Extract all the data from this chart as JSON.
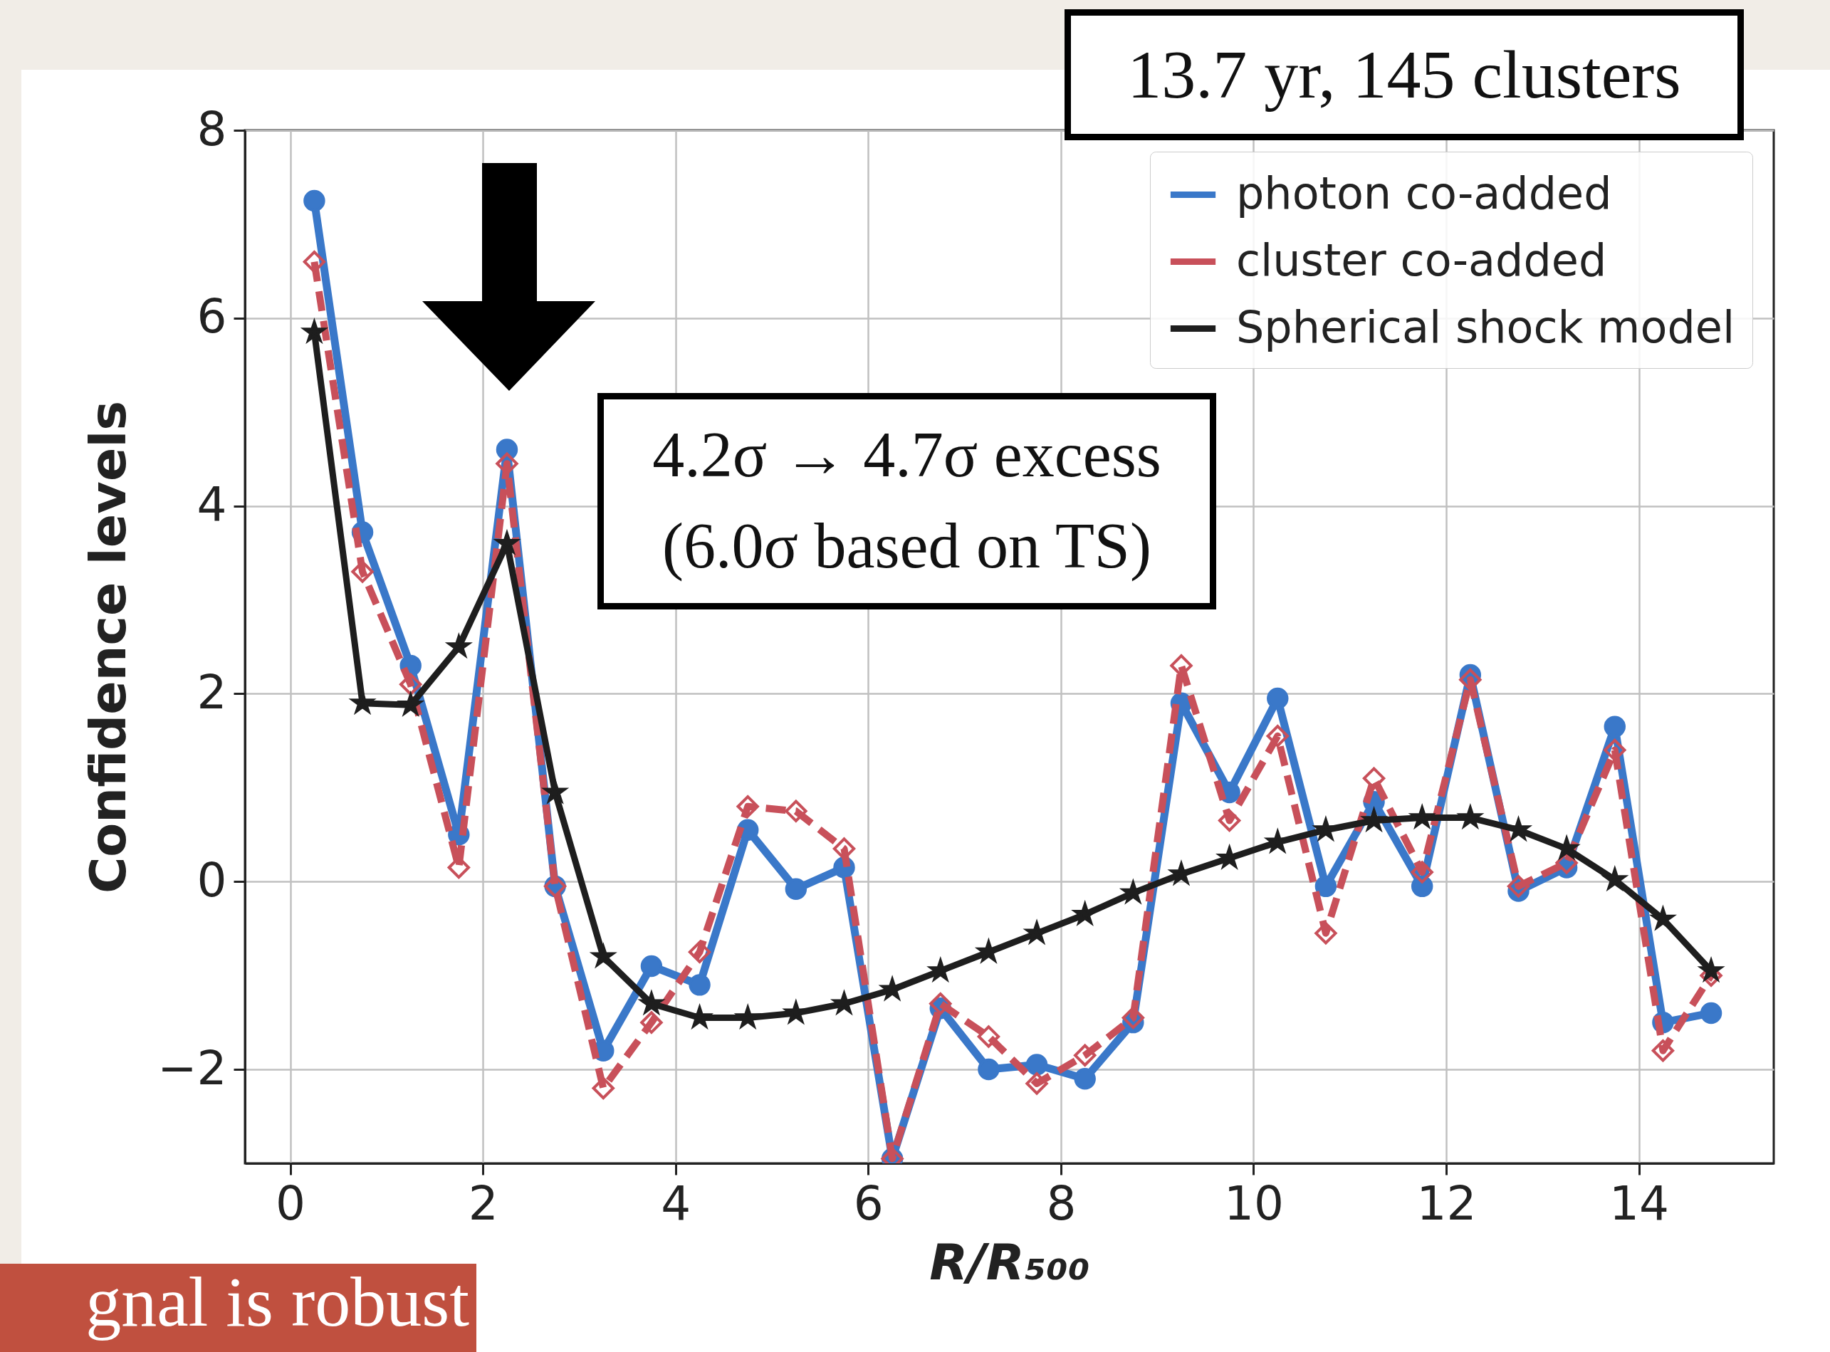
{
  "chart_data": {
    "type": "line",
    "xlabel": "R/R₅₀₀",
    "ylabel": "Confidence levels",
    "x": [
      0.25,
      0.75,
      1.25,
      1.75,
      2.25,
      2.75,
      3.25,
      3.75,
      4.25,
      4.75,
      5.25,
      5.75,
      6.25,
      6.75,
      7.25,
      7.75,
      8.25,
      8.75,
      9.25,
      9.75,
      10.25,
      10.75,
      11.25,
      11.75,
      12.25,
      12.75,
      13.25,
      13.75,
      14.25,
      14.75
    ],
    "series": [
      {
        "name": "photon co-added",
        "color": "#3a78c9",
        "marker": "circle",
        "line_style": "solid",
        "values": [
          7.25,
          3.72,
          2.3,
          0.5,
          4.6,
          -0.05,
          -1.8,
          -0.9,
          -1.1,
          0.55,
          -0.08,
          0.15,
          -2.95,
          -1.35,
          -2.0,
          -1.95,
          -2.1,
          -1.5,
          1.9,
          0.95,
          1.95,
          -0.05,
          0.85,
          -0.05,
          2.2,
          -0.1,
          0.15,
          1.65,
          -1.5,
          -1.4
        ]
      },
      {
        "name": "cluster co-added",
        "color": "#c8505a",
        "marker": "diamond",
        "line_style": "dashed",
        "values": [
          6.6,
          3.3,
          2.1,
          0.15,
          4.45,
          -0.05,
          -2.2,
          -1.5,
          -0.75,
          0.8,
          0.75,
          0.35,
          -2.95,
          -1.3,
          -1.65,
          -2.15,
          -1.85,
          -1.45,
          2.3,
          0.65,
          1.55,
          -0.55,
          1.1,
          0.1,
          2.15,
          -0.05,
          0.2,
          1.4,
          -1.8,
          -1.0
        ]
      },
      {
        "name": "Spherical shock model",
        "color": "#1e1e1e",
        "marker": "star",
        "line_style": "solid",
        "values": [
          5.85,
          1.9,
          1.88,
          2.5,
          3.6,
          0.95,
          -0.8,
          -1.3,
          -1.45,
          -1.45,
          -1.4,
          -1.3,
          -1.15,
          -0.95,
          -0.75,
          -0.55,
          -0.35,
          -0.12,
          0.08,
          0.25,
          0.42,
          0.55,
          0.65,
          0.68,
          0.68,
          0.55,
          0.35,
          0.02,
          -0.4,
          -0.95
        ]
      }
    ],
    "xlim": [
      -0.47,
      15.4
    ],
    "xticks": [
      0,
      2,
      4,
      6,
      8,
      10,
      12,
      14
    ],
    "ylim": [
      -3,
      8
    ],
    "yticks": [
      -2,
      0,
      2,
      4,
      6,
      8
    ],
    "grid": true,
    "legend": "top right",
    "annotations": [
      "13.7 yr, 145 clusters",
      "4.2σ → 4.7σ excess",
      "(6.0σ based on TS)",
      "gnal is robust"
    ]
  }
}
